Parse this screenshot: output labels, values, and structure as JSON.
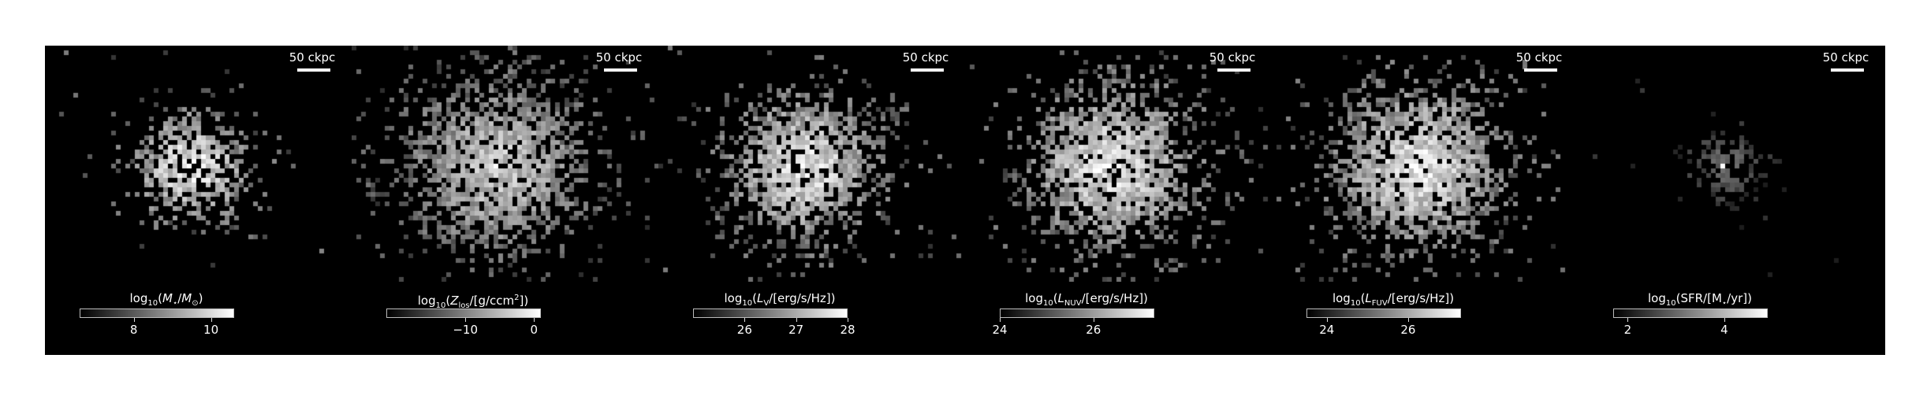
{
  "figure": {
    "panels": [
      {
        "id": "mass",
        "scale_label": "50 ckpc",
        "colorbar": {
          "label_parts": [
            "log",
            "10",
            "(",
            "M",
            "⋆",
            "/",
            "M",
            "⊙",
            ")"
          ],
          "range": [
            6.6,
            10.6
          ],
          "ticks": [
            {
              "value": 8,
              "label": "8"
            },
            {
              "value": 10,
              "label": "10"
            }
          ]
        },
        "map": {
          "spread": 0.11,
          "brightness": 1.0,
          "sparsity": 0.55
        }
      },
      {
        "id": "metallicity",
        "scale_label": "50 ckpc",
        "colorbar": {
          "label_parts": [
            "log",
            "10",
            "(",
            "Z",
            "los",
            "/[g/ccm",
            "2",
            "])"
          ],
          "range": [
            -21.5,
            1
          ],
          "ticks": [
            {
              "value": -10,
              "label": "−10"
            },
            {
              "value": 0,
              "label": "0"
            }
          ]
        },
        "map": {
          "spread": 0.18,
          "brightness": 0.85,
          "sparsity": 0.35
        }
      },
      {
        "id": "v-band",
        "scale_label": "50 ckpc",
        "colorbar": {
          "label_parts": [
            "log",
            "10",
            "(",
            "L",
            "V",
            "/[erg/s/Hz])"
          ],
          "range": [
            25,
            28
          ],
          "ticks": [
            {
              "value": 26,
              "label": "26"
            },
            {
              "value": 27,
              "label": "27"
            },
            {
              "value": 28,
              "label": "28"
            }
          ]
        },
        "map": {
          "spread": 0.15,
          "brightness": 0.95,
          "sparsity": 0.4
        }
      },
      {
        "id": "nuv",
        "scale_label": "50 ckpc",
        "colorbar": {
          "label_parts": [
            "log",
            "10",
            "(",
            "L",
            "NUV",
            "/[erg/s/Hz])"
          ],
          "range": [
            24,
            27.3
          ],
          "ticks": [
            {
              "value": 24,
              "label": "24"
            },
            {
              "value": 26,
              "label": "26"
            }
          ]
        },
        "map": {
          "spread": 0.17,
          "brightness": 0.95,
          "sparsity": 0.38
        }
      },
      {
        "id": "fuv",
        "scale_label": "50 ckpc",
        "colorbar": {
          "label_parts": [
            "log",
            "10",
            "(",
            "L",
            "FUV",
            "/[erg/s/Hz])"
          ],
          "range": [
            23.5,
            27.3
          ],
          "ticks": [
            {
              "value": 24,
              "label": "24"
            },
            {
              "value": 26,
              "label": "26"
            }
          ]
        },
        "map": {
          "spread": 0.17,
          "brightness": 0.95,
          "sparsity": 0.38
        }
      },
      {
        "id": "sfr",
        "scale_label": "50 ckpc",
        "colorbar": {
          "label_parts": [
            "log",
            "10",
            "(SFR/[M",
            "⋆",
            "/yr])"
          ],
          "range": [
            1.7,
            4.9
          ],
          "ticks": [
            {
              "value": 2,
              "label": "2"
            },
            {
              "value": 4,
              "label": "4"
            }
          ]
        },
        "map": {
          "spread": 0.07,
          "brightness": 0.45,
          "sparsity": 0.85
        }
      }
    ]
  }
}
